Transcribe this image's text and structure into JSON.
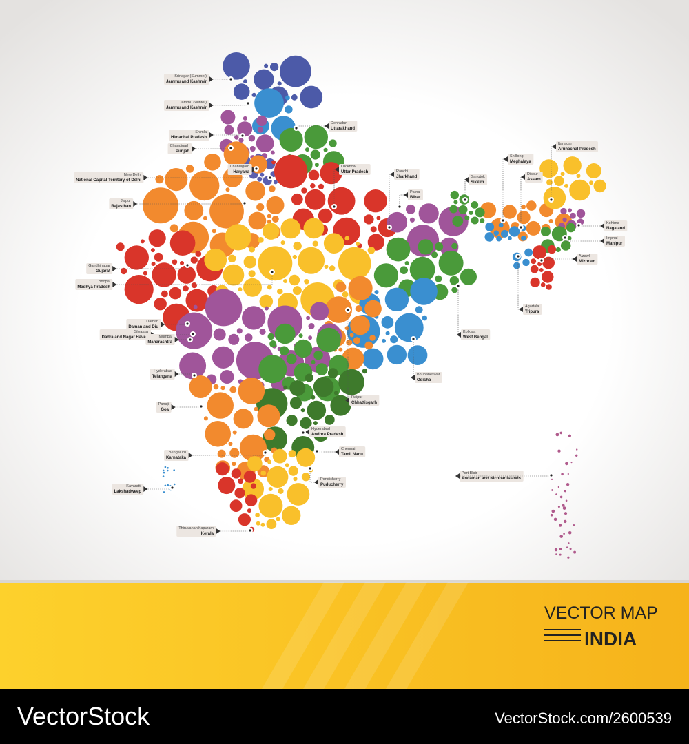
{
  "labels": [
    {
      "capital": "Srinagar (Summer)",
      "state": "Jammu and Kashmir"
    },
    {
      "capital": "Jammu (Winter)",
      "state": "Jammu and Kashmir"
    },
    {
      "capital": "Shimla",
      "state": "Himachal Pradesh"
    },
    {
      "capital": "Chandigarh",
      "state": "Punjab"
    },
    {
      "capital": "New Delhi",
      "state": "National Capital Territory of Delhi"
    },
    {
      "capital": "Chandigarh",
      "state": "Haryana"
    },
    {
      "capital": "Dehradun",
      "state": "Uttarakhand"
    },
    {
      "capital": "Lucknow",
      "state": "Uttar Pradesh"
    },
    {
      "capital": "Ranchi",
      "state": "Jharkhand"
    },
    {
      "capital": "Patna",
      "state": "Bihar"
    },
    {
      "capital": "Gangtok",
      "state": "Sikkim"
    },
    {
      "capital": "Shillong",
      "state": "Meghalaya"
    },
    {
      "capital": "Dispur",
      "state": "Assam"
    },
    {
      "capital": "Itanagar",
      "state": "Arunachal Pradesh"
    },
    {
      "capital": "Kohima",
      "state": "Nagaland"
    },
    {
      "capital": "Imphal",
      "state": "Manipur"
    },
    {
      "capital": "Aizawl",
      "state": "Mizoram"
    },
    {
      "capital": "Agartala",
      "state": "Tripura"
    },
    {
      "capital": "Jaipur",
      "state": "Rajasthan"
    },
    {
      "capital": "Gandhinagar",
      "state": "Gujarat"
    },
    {
      "capital": "Bhopal",
      "state": "Madhya Pradesh"
    },
    {
      "capital": "Daman",
      "state": "Daman and Diu"
    },
    {
      "capital": "Silvassa",
      "state": "Dadra and Nagar Haveli"
    },
    {
      "capital": "Mumbai",
      "state": "Maharashtra"
    },
    {
      "capital": "Hyderabad",
      "state": "Telangana"
    },
    {
      "capital": "Panaji",
      "state": "Goa"
    },
    {
      "capital": "Bengaluru",
      "state": "Karnataka"
    },
    {
      "capital": "Kavaratti",
      "state": "Lakshadweep"
    },
    {
      "capital": "Thiruvananthapuram",
      "state": "Kerala"
    },
    {
      "capital": "Kolkata",
      "state": "West Bengal"
    },
    {
      "capital": "Bhubaneswar",
      "state": "Odisha"
    },
    {
      "capital": "Raipur",
      "state": "Chhattisgarh"
    },
    {
      "capital": "Hyderabad",
      "state": "Andhra Pradesh"
    },
    {
      "capital": "Chennai",
      "state": "Tamil Nadu"
    },
    {
      "capital": "Pondicherry",
      "state": "Puducherry"
    },
    {
      "capital": "Port Blair",
      "state": "Andaman and Nicobar Islands"
    }
  ],
  "footer": {
    "title": "VECTOR MAP",
    "subtitle": "INDIA"
  },
  "watermark": {
    "brand": "VectorStock",
    "id": "VectorStock.com/2600539"
  }
}
